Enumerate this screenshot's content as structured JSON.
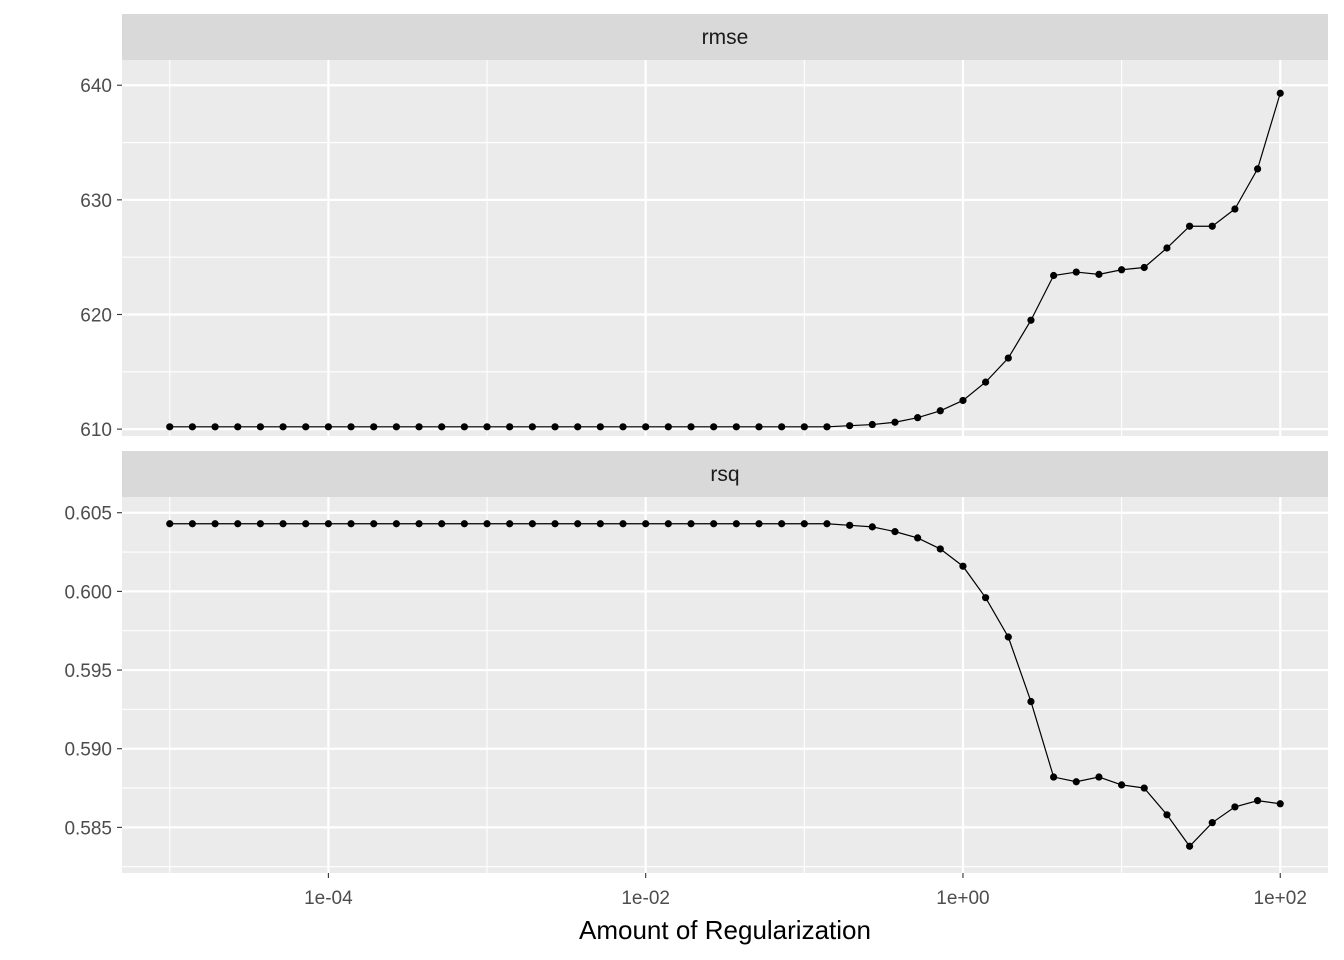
{
  "chart_data": {
    "type": "line",
    "xlabel": "Amount of Regularization",
    "xscale": "log10",
    "xlim": [
      5e-06,
      200
    ],
    "x_ticks": [
      {
        "value": 0.0001,
        "label": "1e-04"
      },
      {
        "value": 0.01,
        "label": "1e-02"
      },
      {
        "value": 1,
        "label": "1e+00"
      },
      {
        "value": 100,
        "label": "1e+02"
      }
    ],
    "x": [
      1e-05,
      1.389e-05,
      1.931e-05,
      2.683e-05,
      3.728e-05,
      5.179e-05,
      7.197e-05,
      0.0001,
      0.0001389,
      0.0001931,
      0.0002683,
      0.0003728,
      0.0005179,
      0.0007197,
      0.001,
      0.001389,
      0.001931,
      0.002683,
      0.003728,
      0.005179,
      0.007197,
      0.01,
      0.01389,
      0.01931,
      0.02683,
      0.03728,
      0.05179,
      0.07197,
      0.1,
      0.1389,
      0.1931,
      0.2683,
      0.3728,
      0.5179,
      0.7197,
      1.0,
      1.389,
      1.931,
      2.683,
      3.728,
      5.179,
      7.197,
      10.0,
      13.89,
      19.31,
      26.83,
      37.28,
      51.79,
      71.97,
      100.0
    ],
    "grid": true,
    "panels": [
      {
        "strip": "rmse",
        "ylim": [
          609.4,
          642.2
        ],
        "y_ticks": [
          {
            "value": 610,
            "label": "610"
          },
          {
            "value": 620,
            "label": "620"
          },
          {
            "value": 630,
            "label": "630"
          },
          {
            "value": 640,
            "label": "640"
          }
        ],
        "values": [
          610.2,
          610.2,
          610.2,
          610.2,
          610.2,
          610.2,
          610.2,
          610.2,
          610.2,
          610.2,
          610.2,
          610.2,
          610.2,
          610.2,
          610.2,
          610.2,
          610.2,
          610.2,
          610.2,
          610.2,
          610.2,
          610.2,
          610.2,
          610.2,
          610.2,
          610.2,
          610.2,
          610.2,
          610.2,
          610.2,
          610.3,
          610.4,
          610.6,
          611.0,
          611.6,
          612.5,
          614.1,
          616.2,
          619.5,
          623.4,
          623.7,
          623.5,
          623.9,
          624.1,
          625.8,
          627.7,
          627.7,
          629.2,
          632.7,
          639.3
        ]
      },
      {
        "strip": "rsq",
        "ylim": [
          0.5821,
          0.606
        ],
        "y_ticks": [
          {
            "value": 0.585,
            "label": "0.585"
          },
          {
            "value": 0.59,
            "label": "0.590"
          },
          {
            "value": 0.595,
            "label": "0.595"
          },
          {
            "value": 0.6,
            "label": "0.600"
          },
          {
            "value": 0.605,
            "label": "0.605"
          }
        ],
        "values": [
          0.6043,
          0.6043,
          0.6043,
          0.6043,
          0.6043,
          0.6043,
          0.6043,
          0.6043,
          0.6043,
          0.6043,
          0.6043,
          0.6043,
          0.6043,
          0.6043,
          0.6043,
          0.6043,
          0.6043,
          0.6043,
          0.6043,
          0.6043,
          0.6043,
          0.6043,
          0.6043,
          0.6043,
          0.6043,
          0.6043,
          0.6043,
          0.6043,
          0.6043,
          0.6043,
          0.6042,
          0.6041,
          0.6038,
          0.6034,
          0.6027,
          0.6016,
          0.5996,
          0.5971,
          0.593,
          0.5882,
          0.5879,
          0.5882,
          0.5877,
          0.5875,
          0.5858,
          0.5838,
          0.5853,
          0.5863,
          0.5867,
          0.5865
        ]
      }
    ]
  }
}
